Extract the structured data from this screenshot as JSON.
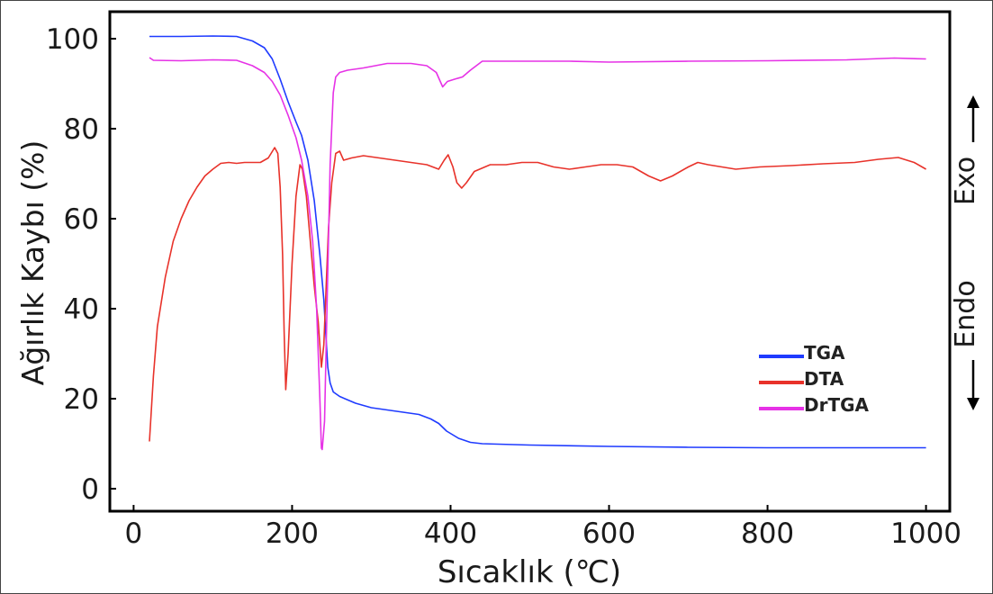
{
  "chart_data": {
    "type": "line",
    "xlabel": "Sıcaklık (℃)",
    "ylabel": "Ağırlık Kaybı (%)",
    "xlim": [
      -30,
      1030
    ],
    "ylim": [
      -5,
      106
    ],
    "x_ticks": [
      0,
      200,
      400,
      600,
      800,
      1000
    ],
    "y_ticks": [
      0,
      20,
      40,
      60,
      80,
      100
    ],
    "grid": false,
    "legend_placement": "bottom-right",
    "side_labels": {
      "exo": "Exo",
      "endo": "Endo"
    },
    "series": [
      {
        "name": "TGA",
        "color": "#1f3bff",
        "points": [
          [
            20,
            100.5
          ],
          [
            60,
            100.5
          ],
          [
            100,
            100.6
          ],
          [
            130,
            100.5
          ],
          [
            150,
            99.5
          ],
          [
            165,
            98
          ],
          [
            175,
            95.5
          ],
          [
            185,
            91
          ],
          [
            195,
            86
          ],
          [
            205,
            81.5
          ],
          [
            212,
            78.5
          ],
          [
            220,
            73
          ],
          [
            228,
            64
          ],
          [
            235,
            52
          ],
          [
            240,
            42
          ],
          [
            243,
            33
          ],
          [
            245,
            27
          ],
          [
            248,
            23.5
          ],
          [
            252,
            21.5
          ],
          [
            260,
            20.5
          ],
          [
            280,
            19
          ],
          [
            300,
            18
          ],
          [
            320,
            17.5
          ],
          [
            340,
            17
          ],
          [
            360,
            16.5
          ],
          [
            375,
            15.5
          ],
          [
            385,
            14.5
          ],
          [
            395,
            12.8
          ],
          [
            410,
            11.2
          ],
          [
            425,
            10.3
          ],
          [
            440,
            10
          ],
          [
            500,
            9.7
          ],
          [
            600,
            9.4
          ],
          [
            700,
            9.2
          ],
          [
            800,
            9.1
          ],
          [
            900,
            9.1
          ],
          [
            1000,
            9.1
          ]
        ]
      },
      {
        "name": "DTA",
        "color": "#e8322a",
        "points": [
          [
            20,
            10.5
          ],
          [
            25,
            25
          ],
          [
            30,
            36
          ],
          [
            40,
            47
          ],
          [
            50,
            55
          ],
          [
            60,
            60
          ],
          [
            70,
            64
          ],
          [
            80,
            67
          ],
          [
            90,
            69.5
          ],
          [
            100,
            71
          ],
          [
            110,
            72.3
          ],
          [
            120,
            72.5
          ],
          [
            130,
            72.3
          ],
          [
            140,
            72.5
          ],
          [
            160,
            72.5
          ],
          [
            170,
            73.5
          ],
          [
            178,
            75.8
          ],
          [
            182,
            74.5
          ],
          [
            185,
            67
          ],
          [
            188,
            52
          ],
          [
            190,
            35
          ],
          [
            192,
            22
          ],
          [
            195,
            30
          ],
          [
            200,
            50
          ],
          [
            205,
            65
          ],
          [
            210,
            72
          ],
          [
            213,
            71
          ],
          [
            218,
            65
          ],
          [
            223,
            55
          ],
          [
            228,
            45
          ],
          [
            233,
            37
          ],
          [
            237,
            27
          ],
          [
            240,
            32
          ],
          [
            243,
            45
          ],
          [
            246,
            58
          ],
          [
            250,
            68
          ],
          [
            255,
            74.5
          ],
          [
            260,
            75
          ],
          [
            265,
            73
          ],
          [
            275,
            73.5
          ],
          [
            290,
            74
          ],
          [
            310,
            73.5
          ],
          [
            330,
            73
          ],
          [
            350,
            72.5
          ],
          [
            370,
            72
          ],
          [
            385,
            71
          ],
          [
            392,
            73
          ],
          [
            397,
            74.2
          ],
          [
            403,
            71.5
          ],
          [
            408,
            68
          ],
          [
            414,
            66.8
          ],
          [
            420,
            68
          ],
          [
            430,
            70.5
          ],
          [
            450,
            72
          ],
          [
            470,
            72
          ],
          [
            490,
            72.5
          ],
          [
            510,
            72.5
          ],
          [
            530,
            71.5
          ],
          [
            550,
            71
          ],
          [
            570,
            71.5
          ],
          [
            590,
            72
          ],
          [
            610,
            72
          ],
          [
            630,
            71.5
          ],
          [
            650,
            69.5
          ],
          [
            665,
            68.4
          ],
          [
            680,
            69.5
          ],
          [
            700,
            71.5
          ],
          [
            712,
            72.5
          ],
          [
            725,
            72
          ],
          [
            760,
            71
          ],
          [
            790,
            71.5
          ],
          [
            830,
            71.8
          ],
          [
            870,
            72.2
          ],
          [
            910,
            72.5
          ],
          [
            940,
            73.2
          ],
          [
            965,
            73.6
          ],
          [
            985,
            72.5
          ],
          [
            1000,
            71
          ]
        ]
      },
      {
        "name": "DrTGA",
        "color": "#e632e6",
        "points": [
          [
            20,
            95.8
          ],
          [
            25,
            95.2
          ],
          [
            60,
            95.1
          ],
          [
            100,
            95.3
          ],
          [
            130,
            95.2
          ],
          [
            150,
            94
          ],
          [
            165,
            92.5
          ],
          [
            175,
            90.5
          ],
          [
            185,
            87.5
          ],
          [
            195,
            83
          ],
          [
            205,
            78
          ],
          [
            212,
            73
          ],
          [
            220,
            65
          ],
          [
            226,
            55
          ],
          [
            231,
            40
          ],
          [
            235,
            20
          ],
          [
            237,
            9
          ],
          [
            238,
            8.7
          ],
          [
            241,
            15
          ],
          [
            244,
            40
          ],
          [
            248,
            72
          ],
          [
            252,
            88
          ],
          [
            255,
            91.5
          ],
          [
            260,
            92.5
          ],
          [
            270,
            93
          ],
          [
            290,
            93.5
          ],
          [
            320,
            94.5
          ],
          [
            350,
            94.5
          ],
          [
            370,
            94
          ],
          [
            382,
            92.5
          ],
          [
            390,
            89.3
          ],
          [
            396,
            90.5
          ],
          [
            405,
            91
          ],
          [
            415,
            91.5
          ],
          [
            425,
            93
          ],
          [
            440,
            95
          ],
          [
            480,
            95
          ],
          [
            550,
            95
          ],
          [
            600,
            94.8
          ],
          [
            700,
            95
          ],
          [
            800,
            95.1
          ],
          [
            900,
            95.3
          ],
          [
            960,
            95.7
          ],
          [
            1000,
            95.5
          ]
        ]
      }
    ]
  }
}
